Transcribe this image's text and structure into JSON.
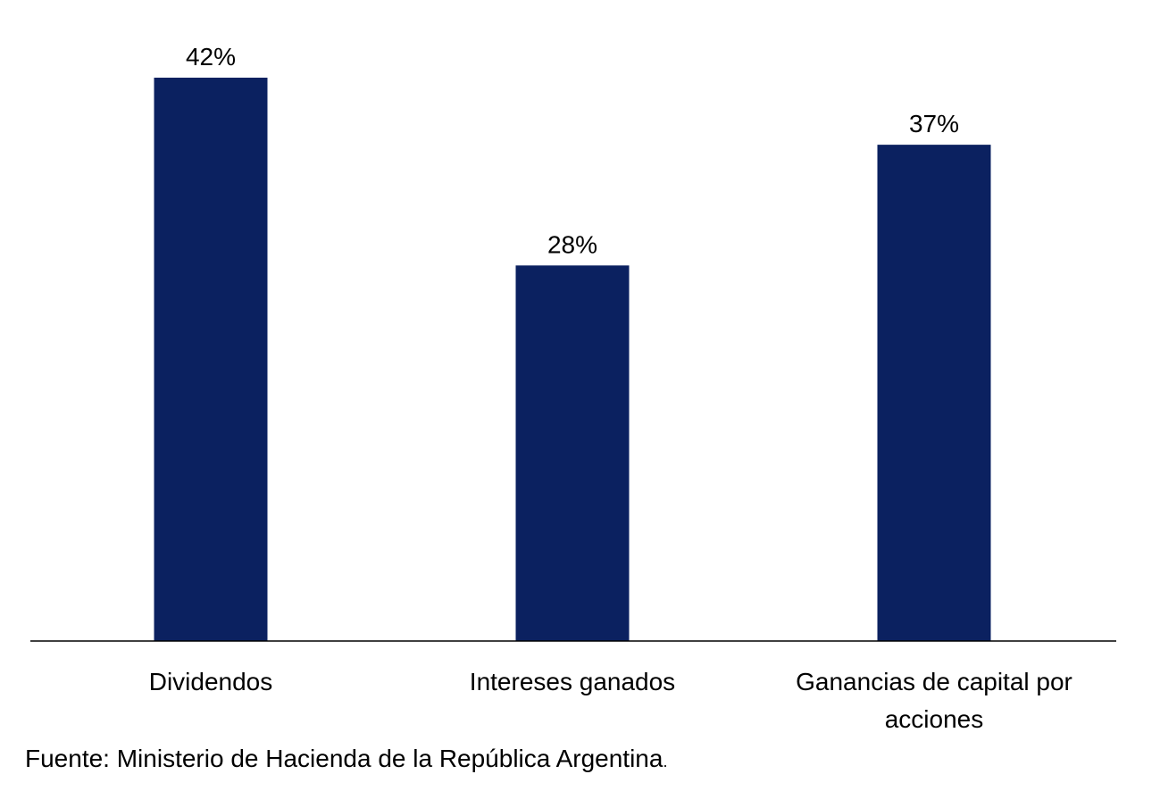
{
  "chart_data": {
    "type": "bar",
    "categories": [
      [
        "Dividendos"
      ],
      [
        "Intereses ganados"
      ],
      [
        "Ganancias de capital por",
        "acciones"
      ]
    ],
    "values": [
      42,
      28,
      37
    ],
    "data_labels": [
      "42%",
      "28%",
      "37%"
    ],
    "ylim": [
      0,
      42
    ],
    "bar_color": "#0b2160",
    "axis_color": "#000000",
    "grid": false,
    "legend": "none"
  },
  "source": {
    "text": "Fuente: Ministerio de Hacienda de la República Argentina",
    "period": "."
  }
}
